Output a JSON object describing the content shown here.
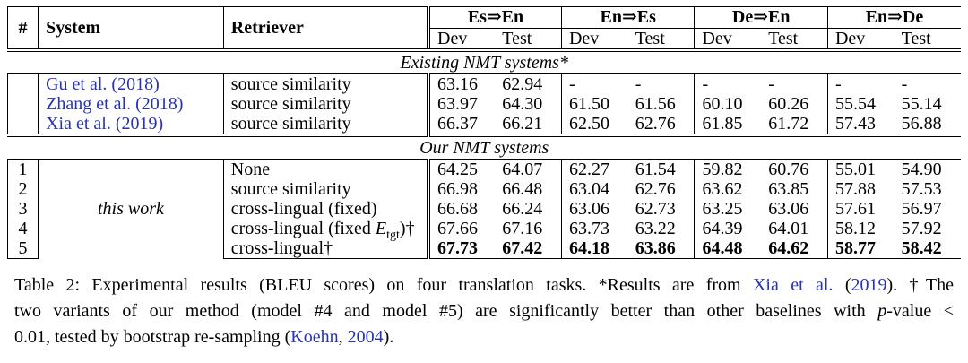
{
  "colors": {
    "citation_blue": "#2733b3",
    "text": "#000000",
    "background": "#ffffff"
  },
  "table": {
    "col_headers": [
      "#",
      "System",
      "Retriever"
    ],
    "groups": [
      "Es⇒En",
      "En⇒Es",
      "De⇒En",
      "En⇒De"
    ],
    "sub_headers": [
      "Dev",
      "Test",
      "Dev",
      "Test",
      "Dev",
      "Test",
      "Dev",
      "Test"
    ],
    "sections": [
      {
        "title": "Existing NMT systems*",
        "rows": [
          {
            "num": "",
            "system": [
              {
                "t": "Gu et al. (2018)",
                "style": "link"
              }
            ],
            "retriever": [
              {
                "t": "source similarity"
              }
            ],
            "scores": [
              "63.16",
              "62.94",
              "-",
              "-",
              "-",
              "-",
              "-",
              "-"
            ],
            "bold": false
          },
          {
            "num": "",
            "system": [
              {
                "t": "Zhang et al. (2018)",
                "style": "link"
              }
            ],
            "retriever": [
              {
                "t": "source similarity"
              }
            ],
            "scores": [
              "63.97",
              "64.30",
              "61.50",
              "61.56",
              "60.10",
              "60.26",
              "55.54",
              "55.14"
            ],
            "bold": false
          },
          {
            "num": "",
            "system": [
              {
                "t": "Xia et al. (2019)",
                "style": "link"
              }
            ],
            "retriever": [
              {
                "t": "source similarity"
              }
            ],
            "scores": [
              "66.37",
              "66.21",
              "62.50",
              "62.76",
              "61.85",
              "61.72",
              "57.43",
              "56.88"
            ],
            "bold": false
          }
        ]
      },
      {
        "title": "Our NMT systems",
        "system_group": "this work",
        "rows": [
          {
            "num": "1",
            "retriever": [
              {
                "t": "None"
              }
            ],
            "scores": [
              "64.25",
              "64.07",
              "62.27",
              "61.54",
              "59.82",
              "60.76",
              "55.01",
              "54.90"
            ],
            "bold": false
          },
          {
            "num": "2",
            "retriever": [
              {
                "t": "source similarity"
              }
            ],
            "scores": [
              "66.98",
              "66.48",
              "63.04",
              "62.76",
              "63.62",
              "63.85",
              "57.88",
              "57.53"
            ],
            "bold": false
          },
          {
            "num": "3",
            "retriever": [
              {
                "t": "cross-lingual (fixed)"
              }
            ],
            "scores": [
              "66.68",
              "66.24",
              "63.06",
              "62.73",
              "63.25",
              "63.06",
              "57.61",
              "56.97"
            ],
            "bold": false
          },
          {
            "num": "4",
            "retriever": [
              {
                "t": "cross-lingual (fixed "
              },
              {
                "t": "E",
                "style": "mathit"
              },
              {
                "t": "tgt",
                "style": "sub"
              },
              {
                "t": ")†"
              }
            ],
            "scores": [
              "67.66",
              "67.16",
              "63.73",
              "63.22",
              "64.39",
              "64.01",
              "58.12",
              "57.92"
            ],
            "bold": false
          },
          {
            "num": "5",
            "retriever": [
              {
                "t": "cross-lingual†"
              }
            ],
            "scores": [
              "67.73",
              "67.42",
              "64.18",
              "63.86",
              "64.48",
              "64.62",
              "58.77",
              "58.42"
            ],
            "bold": true
          }
        ]
      }
    ]
  },
  "caption": {
    "lines": [
      [
        {
          "t": "Table 2: Experimental results (BLEU scores) on four translation tasks. *Results are from "
        },
        {
          "t": "Xia et al.",
          "style": "link"
        },
        {
          "t": " ("
        },
        {
          "t": "2019",
          "style": "link"
        },
        {
          "t": "). †The"
        }
      ],
      [
        {
          "t": "two variants of our method (model #4 and model #5) are significantly better than other baselines with "
        },
        {
          "t": "p",
          "style": "italic"
        },
        {
          "t": "-value <"
        }
      ],
      [
        {
          "t": "0.01, tested by bootstrap re-sampling ("
        },
        {
          "t": "Koehn",
          "style": "link"
        },
        {
          "t": ", "
        },
        {
          "t": "2004",
          "style": "link"
        },
        {
          "t": ")."
        }
      ]
    ]
  }
}
